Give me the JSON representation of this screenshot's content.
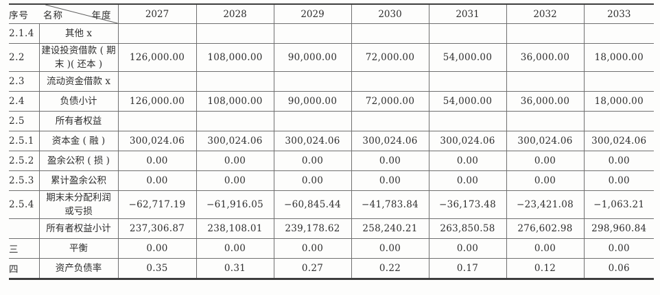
{
  "table": {
    "header": {
      "no": "序号",
      "name": "名称",
      "year": "年度"
    },
    "years": [
      "2027",
      "2028",
      "2029",
      "2030",
      "2031",
      "2032",
      "2033"
    ],
    "rows": [
      {
        "no": "2.1.4",
        "name": "其他 x",
        "values": [
          "",
          "",
          "",
          "",
          "",
          "",
          ""
        ]
      },
      {
        "no": "2.2",
        "name": "建设投资借款 ( 期\n末 )( 还本 )",
        "values": [
          "126,000.00",
          "108,000.00",
          "90,000.00",
          "72,000.00",
          "54,000.00",
          "36,000.00",
          "18,000.00"
        ]
      },
      {
        "no": "2.3",
        "name": "流动资金借款 x",
        "values": [
          "",
          "",
          "",
          "",
          "",
          "",
          ""
        ]
      },
      {
        "no": "2.4",
        "name": "负债小计",
        "values": [
          "126,000.00",
          "108,000.00",
          "90,000.00",
          "72,000.00",
          "54,000.00",
          "36,000.00",
          "18,000.00"
        ]
      },
      {
        "no": "2.5",
        "name": "所有者权益",
        "values": [
          "",
          "",
          "",
          "",
          "",
          "",
          ""
        ]
      },
      {
        "no": "2.5.1",
        "name": "资本金 ( 融 )",
        "values": [
          "300,024.06",
          "300,024.06",
          "300,024.06",
          "300,024.06",
          "300,024.06",
          "300,024.06",
          "300,024.06"
        ]
      },
      {
        "no": "2.5.2",
        "name": "盈余公积 ( 损 )",
        "values": [
          "0.00",
          "0.00",
          "0.00",
          "0.00",
          "0.00",
          "0.00",
          "0.00"
        ]
      },
      {
        "no": "2.5.3",
        "name": "累计盈余公积",
        "values": [
          "0.00",
          "0.00",
          "0.00",
          "0.00",
          "0.00",
          "0.00",
          "0.00"
        ]
      },
      {
        "no": "2.5.4",
        "name": "期末未分配利润\n或亏损",
        "values": [
          "−62,717.19",
          "−61,916.05",
          "−60,845.44",
          "−41,783.84",
          "−36,173.48",
          "−23,421.08",
          "−1,063.21"
        ]
      },
      {
        "no": "",
        "name": "所有者权益小计",
        "values": [
          "237,306.87",
          "238,108.01",
          "239,178.62",
          "258,240.21",
          "263,850.58",
          "276,602.98",
          "298,960.84"
        ]
      },
      {
        "no": "三",
        "name": "平衡",
        "values": [
          "0.00",
          "0.00",
          "0.00",
          "0.00",
          "0.00",
          "0.00",
          "0.00"
        ]
      },
      {
        "no": "四",
        "name": "资产负债率",
        "values": [
          "0.35",
          "0.31",
          "0.27",
          "0.22",
          "0.17",
          "0.12",
          "0.06"
        ]
      }
    ]
  }
}
